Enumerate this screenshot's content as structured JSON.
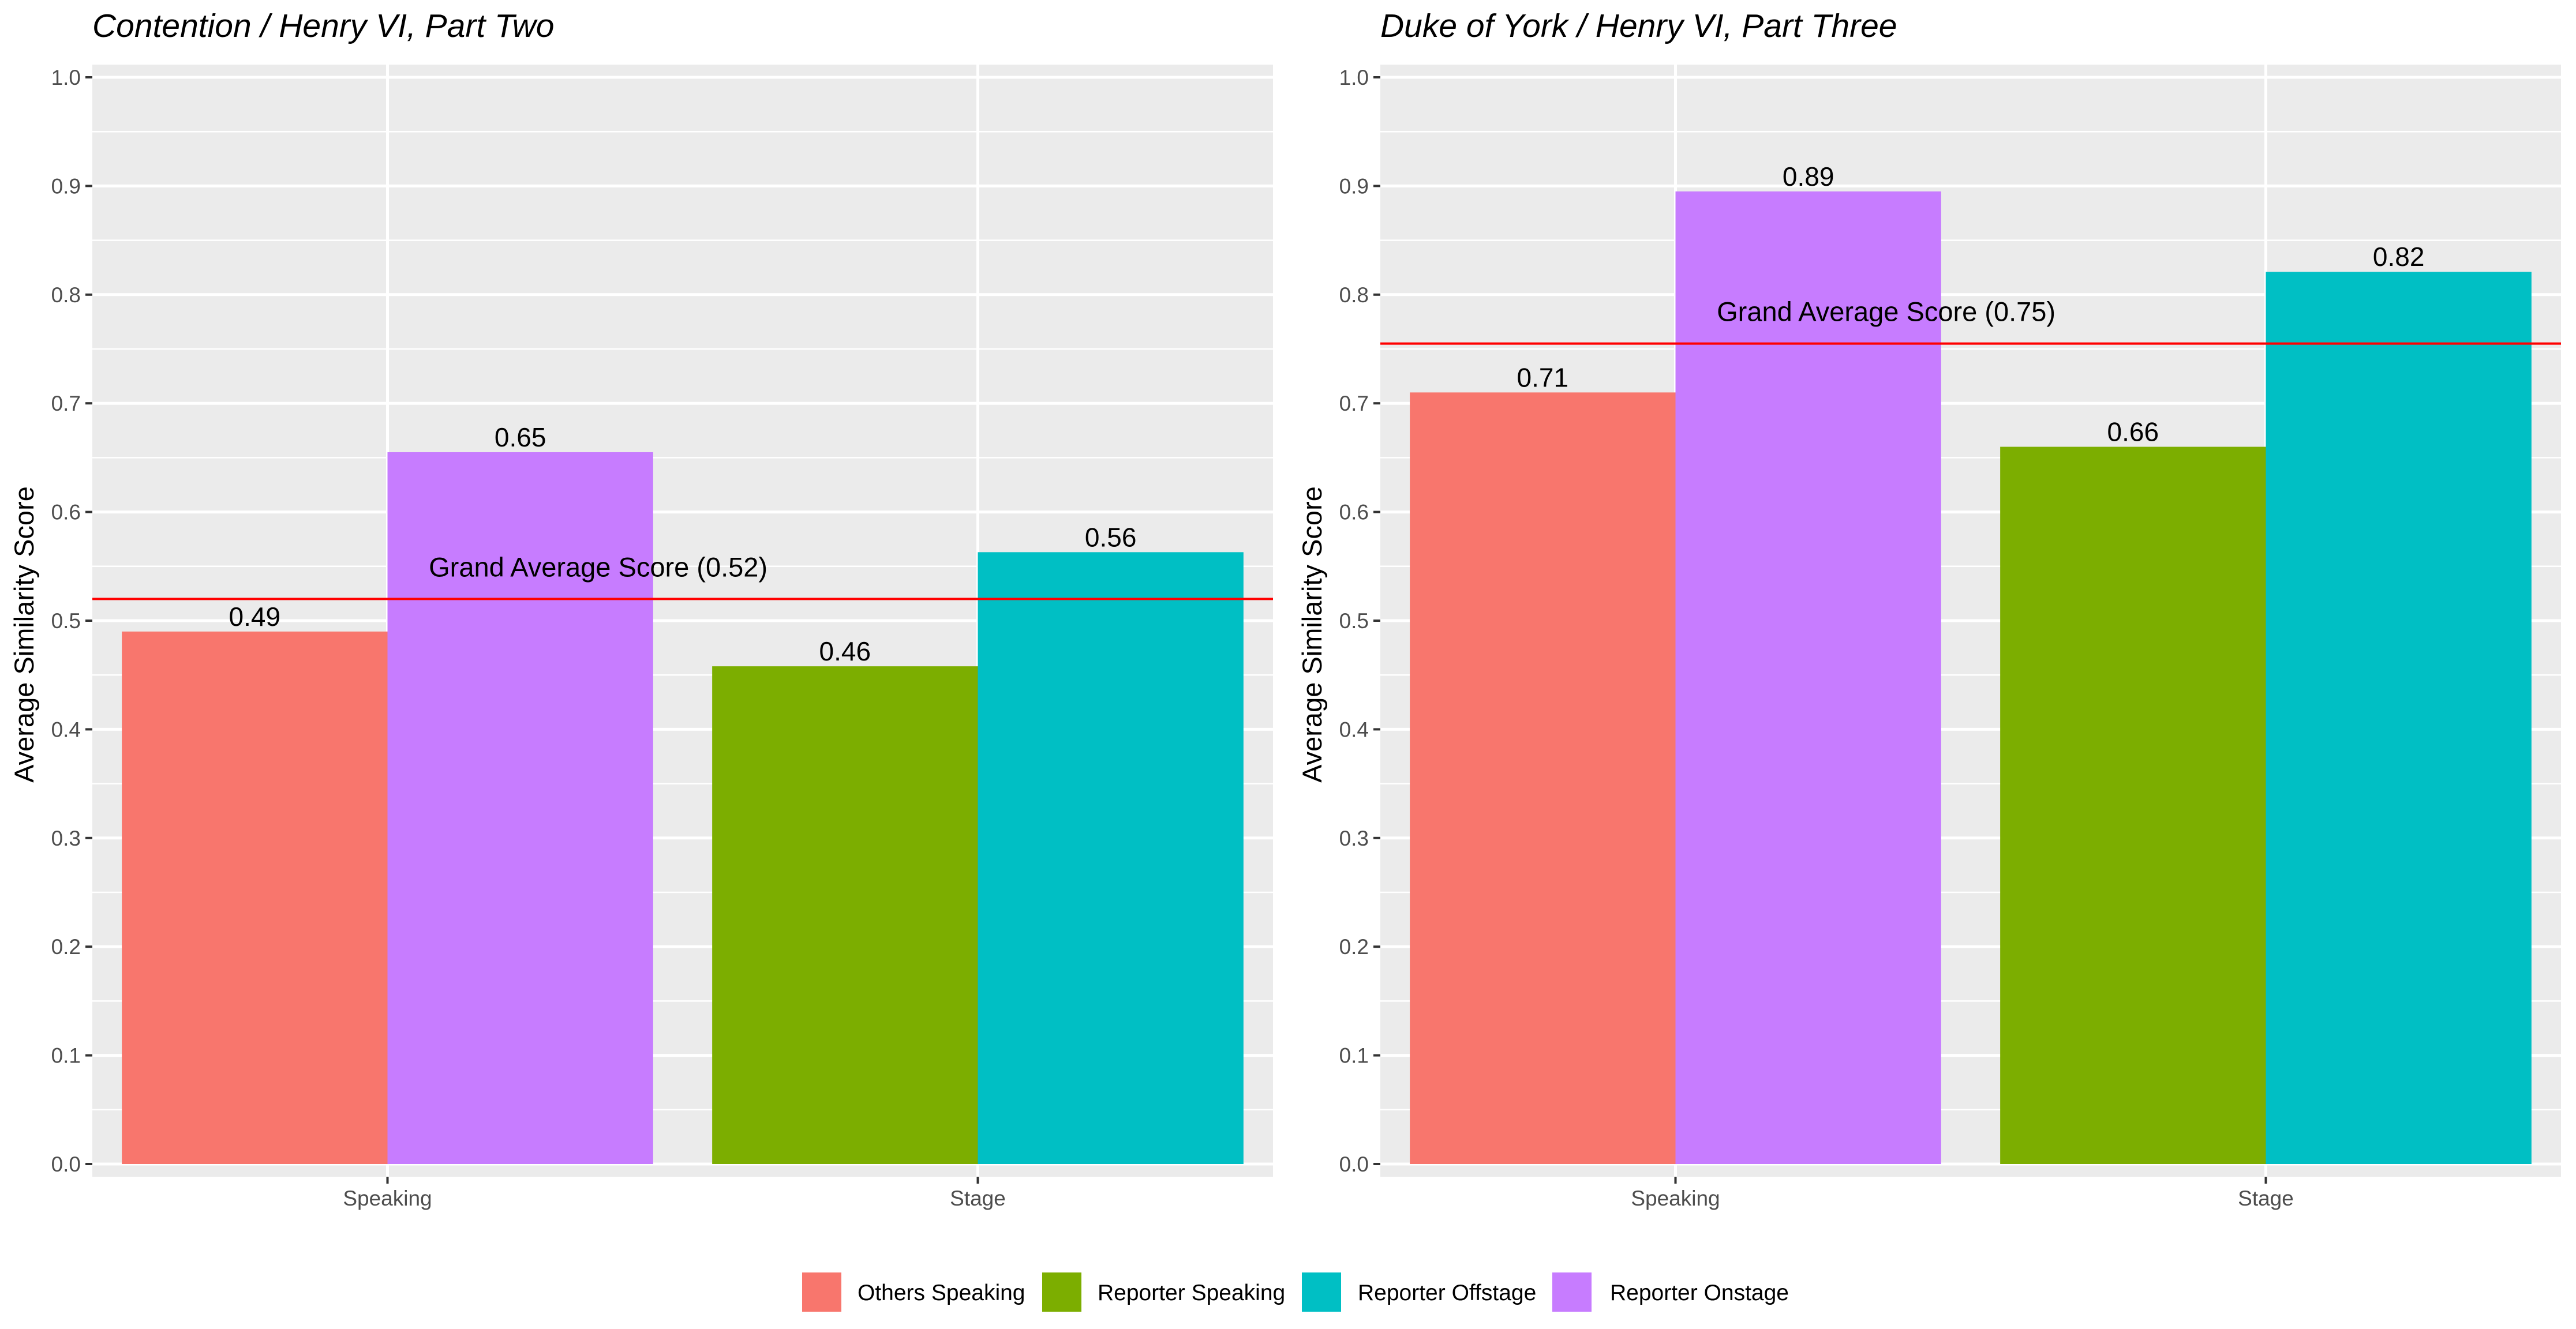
{
  "legend": [
    {
      "key": "others_speaking",
      "label": "Others Speaking",
      "color": "#F8766D"
    },
    {
      "key": "reporter_speaking",
      "label": "Reporter Speaking",
      "color": "#7CAE00"
    },
    {
      "key": "reporter_offstage",
      "label": "Reporter Offstage",
      "color": "#00BFC4"
    },
    {
      "key": "reporter_onstage",
      "label": "Reporter Onstage",
      "color": "#C77CFF"
    }
  ],
  "chart_data": [
    {
      "type": "bar",
      "title": "Contention / Henry VI, Part Two",
      "xlabel": "",
      "ylabel": "Average Similarity Score",
      "ylim": [
        0,
        1.0
      ],
      "yticks": [
        "0.0",
        "0.1",
        "0.2",
        "0.3",
        "0.4",
        "0.5",
        "0.6",
        "0.7",
        "0.8",
        "0.9",
        "1.0"
      ],
      "grid": true,
      "categories": [
        "Speaking",
        "Stage"
      ],
      "bars": [
        {
          "category": "Speaking",
          "series": "others_speaking",
          "value": 0.49,
          "label": "0.49"
        },
        {
          "category": "Speaking",
          "series": "reporter_onstage",
          "value": 0.655,
          "label": "0.65"
        },
        {
          "category": "Stage",
          "series": "reporter_speaking",
          "value": 0.458,
          "label": "0.46"
        },
        {
          "category": "Stage",
          "series": "reporter_offstage",
          "value": 0.563,
          "label": "0.56"
        }
      ],
      "reference_line": {
        "value": 0.52,
        "label": "Grand Average Score (0.52)",
        "color": "#FF0000"
      }
    },
    {
      "type": "bar",
      "title": "Duke of York / Henry VI, Part Three",
      "xlabel": "",
      "ylabel": "Average Similarity Score",
      "ylim": [
        0,
        1.0
      ],
      "yticks": [
        "0.0",
        "0.1",
        "0.2",
        "0.3",
        "0.4",
        "0.5",
        "0.6",
        "0.7",
        "0.8",
        "0.9",
        "1.0"
      ],
      "grid": true,
      "categories": [
        "Speaking",
        "Stage"
      ],
      "bars": [
        {
          "category": "Speaking",
          "series": "others_speaking",
          "value": 0.71,
          "label": "0.71"
        },
        {
          "category": "Speaking",
          "series": "reporter_onstage",
          "value": 0.895,
          "label": "0.89"
        },
        {
          "category": "Stage",
          "series": "reporter_speaking",
          "value": 0.66,
          "label": "0.66"
        },
        {
          "category": "Stage",
          "series": "reporter_offstage",
          "value": 0.821,
          "label": "0.82"
        }
      ],
      "reference_line": {
        "value": 0.755,
        "label": "Grand Average Score (0.75)",
        "color": "#FF0000"
      }
    }
  ]
}
